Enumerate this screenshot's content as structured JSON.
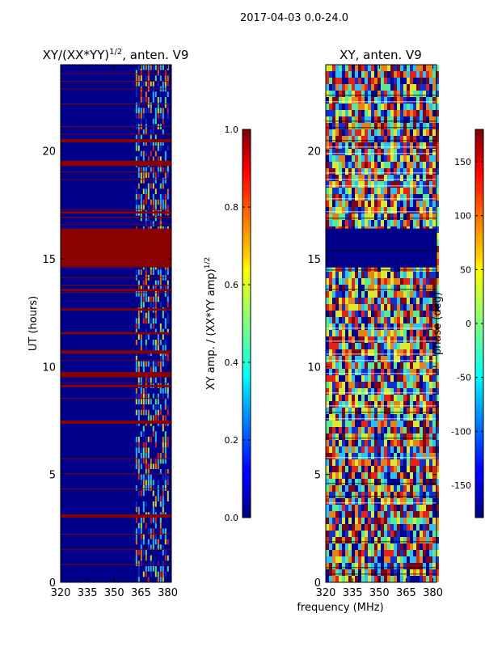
{
  "figure_title": "2017-04-03 0.0-24.0",
  "shared_xlabel": "frequency (MHz)",
  "colors": {
    "base_blue": "#00008b",
    "mid_blue": "#1030d0",
    "red_band": "#8b0000",
    "bright_red": "#ff2000",
    "cyan": "#30d0ff",
    "yellow": "#f0ff20",
    "green": "#60ff90",
    "orange": "#ff8c00"
  },
  "chart_data": [
    {
      "type": "heatmap",
      "title": "XY/(XX*YY)",
      "title_superscript": "1/2",
      "title_suffix": ", anten. V9",
      "xlabel": "",
      "ylabel": "UT (hours)",
      "xlim": [
        320,
        382
      ],
      "ylim": [
        0,
        24
      ],
      "xticks": [
        "320",
        "335",
        "350",
        "365",
        "380"
      ],
      "xtick_values": [
        320,
        335,
        350,
        365,
        380
      ],
      "yticks": [
        "0",
        "5",
        "10",
        "15",
        "20"
      ],
      "ytick_values": [
        0,
        5,
        10,
        15,
        20
      ],
      "colorbar": {
        "label": "XY amp. / (XX*YY amp)",
        "label_superscript": "1/2",
        "range": [
          0.0,
          1.0
        ],
        "ticks": [
          "0.0",
          "0.2",
          "0.4",
          "0.6",
          "0.8",
          "1.0"
        ],
        "tick_values": [
          0.0,
          0.2,
          0.4,
          0.6,
          0.8,
          1.0
        ]
      },
      "saturated_bands_hours": [
        [
          14.6,
          16.4
        ],
        [
          20.4,
          20.55
        ],
        [
          19.3,
          19.55
        ],
        [
          17.1,
          17.2
        ],
        [
          16.9,
          16.95
        ],
        [
          13.5,
          13.6
        ],
        [
          12.6,
          12.7
        ],
        [
          11.5,
          11.6
        ],
        [
          10.6,
          10.75
        ],
        [
          9.5,
          9.75
        ],
        [
          9.05,
          9.15
        ],
        [
          7.35,
          7.5
        ],
        [
          3.0,
          3.15
        ]
      ],
      "active_freq_range_mhz": [
        362,
        381
      ]
    },
    {
      "type": "heatmap",
      "title": "XY, anten. V9",
      "xlabel": "frequency (MHz)",
      "ylabel": "",
      "xlim": [
        320,
        382
      ],
      "ylim": [
        0,
        24
      ],
      "xticks": [
        "320",
        "335",
        "350",
        "365",
        "380"
      ],
      "xtick_values": [
        320,
        335,
        350,
        365,
        380
      ],
      "yticks": [
        "0",
        "5",
        "10",
        "15",
        "20"
      ],
      "ytick_values": [
        0,
        5,
        10,
        15,
        20
      ],
      "colorbar": {
        "label": "phase (deg)",
        "range": [
          -180,
          180
        ],
        "ticks": [
          "-150",
          "-100",
          "-50",
          "0",
          "50",
          "100",
          "150"
        ],
        "tick_values": [
          -150,
          -100,
          -50,
          0,
          50,
          100,
          150
        ]
      },
      "uniform_band_hours": [
        14.6,
        16.4
      ]
    }
  ]
}
